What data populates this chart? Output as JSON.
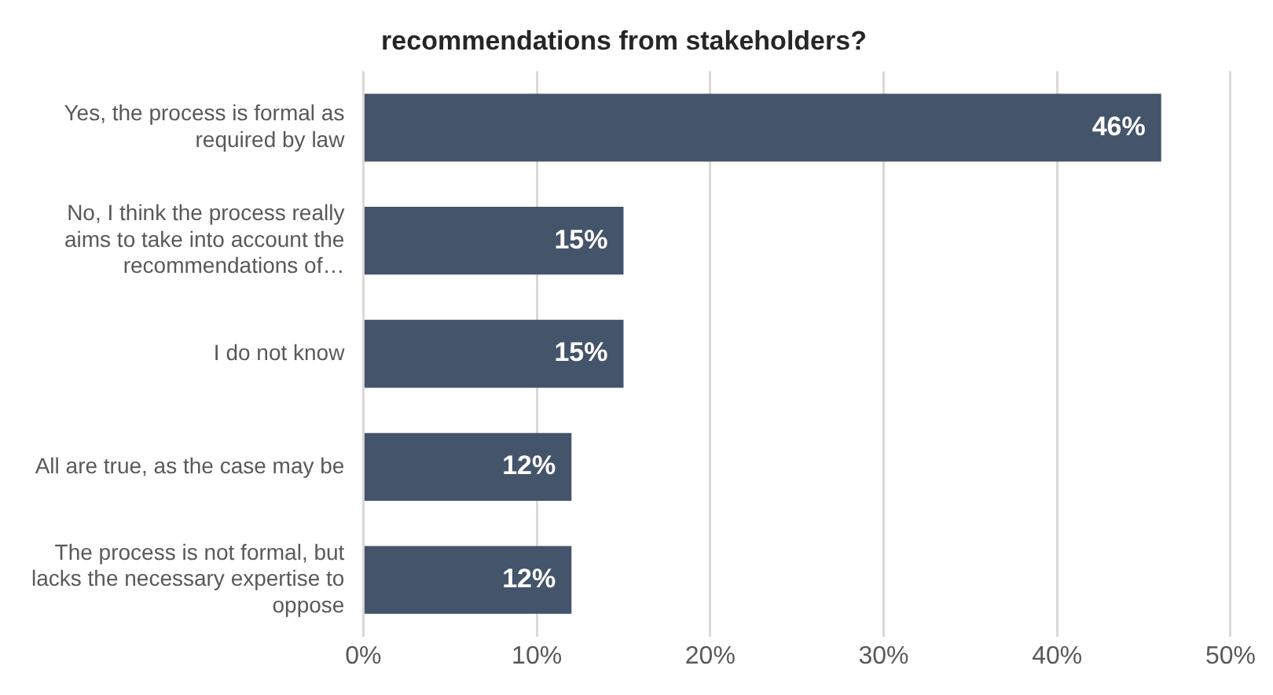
{
  "chart_data": {
    "type": "bar",
    "orientation": "horizontal",
    "title": "recommendations from stakeholders?",
    "categories": [
      "Yes, the process is formal as required by law",
      "No, I think the process really aims to take into account the recommendations of…",
      "I do not know",
      "All are true, as the case may be",
      "The process is not formal, but lacks the necessary expertise to oppose"
    ],
    "values": [
      46,
      15,
      15,
      12,
      12
    ],
    "value_labels": [
      "46%",
      "15%",
      "15%",
      "12%",
      "12%"
    ],
    "color": "#44546a",
    "xlim": [
      0,
      50
    ],
    "xticks": [
      {
        "value": 0,
        "label": "0%"
      },
      {
        "value": 10,
        "label": "10%"
      },
      {
        "value": 20,
        "label": "20%"
      },
      {
        "value": 30,
        "label": "30%"
      },
      {
        "value": 40,
        "label": "40%"
      },
      {
        "value": 50,
        "label": "50%"
      }
    ],
    "grid": "x",
    "legend": false
  }
}
